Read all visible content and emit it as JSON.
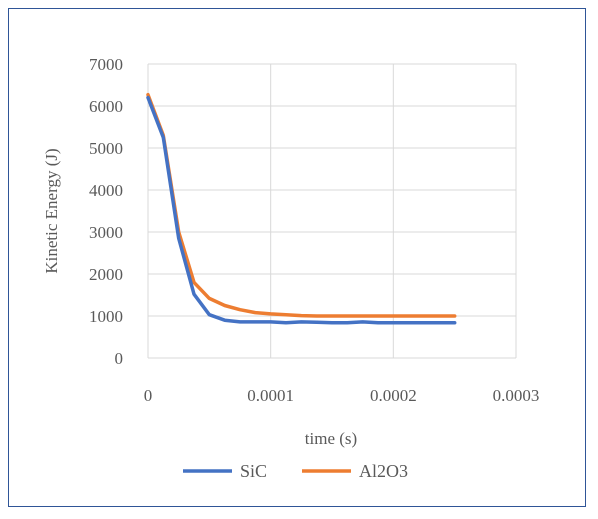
{
  "chart_data": {
    "type": "line",
    "title": "",
    "xlabel": "time (s)",
    "ylabel": "Kinetic Energy  (J)",
    "xlim": [
      0,
      0.0003
    ],
    "ylim": [
      0,
      7000
    ],
    "x_ticks": [
      "0",
      "0.0001",
      "0.0002",
      "0.0003"
    ],
    "y_ticks": [
      "0",
      "1000",
      "2000",
      "3000",
      "4000",
      "5000",
      "6000",
      "7000"
    ],
    "grid": true,
    "legend_position": "bottom",
    "series": [
      {
        "name": "SiC",
        "color": "#4472c4",
        "x": [
          0,
          1.25e-05,
          2.5e-05,
          3.75e-05,
          5e-05,
          6.25e-05,
          7.5e-05,
          8.75e-05,
          0.0001,
          0.0001125,
          0.000125,
          0.0001375,
          0.00015,
          0.0001625,
          0.000175,
          0.0001875,
          0.0002,
          0.0002125,
          0.000225,
          0.0002375,
          0.00025
        ],
        "values": [
          6200,
          5250,
          2850,
          1520,
          1030,
          900,
          860,
          860,
          860,
          840,
          860,
          850,
          840,
          840,
          860,
          840,
          840,
          840,
          840,
          840,
          840
        ]
      },
      {
        "name": "Al2O3",
        "color": "#ed7d31",
        "x": [
          0,
          1.25e-05,
          2.5e-05,
          3.75e-05,
          5e-05,
          6.25e-05,
          7.5e-05,
          8.75e-05,
          0.0001,
          0.0001125,
          0.000125,
          0.0001375,
          0.00015,
          0.0001625,
          0.000175,
          0.0001875,
          0.0002,
          0.0002125,
          0.000225,
          0.0002375,
          0.00025
        ],
        "values": [
          6270,
          5300,
          3000,
          1800,
          1420,
          1250,
          1150,
          1080,
          1050,
          1030,
          1010,
          1000,
          1000,
          1000,
          1000,
          1000,
          1000,
          1000,
          1000,
          1000,
          1000
        ]
      }
    ]
  }
}
